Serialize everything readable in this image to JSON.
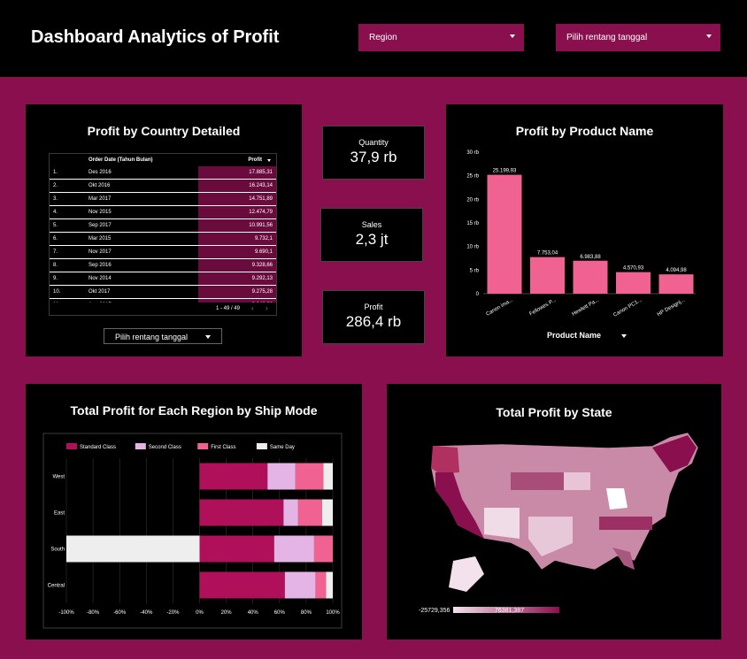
{
  "header": {
    "title": "Dashboard Analytics of Profit",
    "region_dropdown": "Region",
    "date_dropdown": "Pilih rentang tanggal"
  },
  "country_table": {
    "title": "Profit by Country Detailed",
    "col_date": "Order Date (Tahun Bulan)",
    "col_profit": "Profit",
    "rows": [
      {
        "n": "1.",
        "date": "Des 2016",
        "profit": "17.885,31"
      },
      {
        "n": "2.",
        "date": "Okt 2016",
        "profit": "16.243,14"
      },
      {
        "n": "3.",
        "date": "Mar 2017",
        "profit": "14.751,89"
      },
      {
        "n": "4.",
        "date": "Nov 2015",
        "profit": "12.474,79"
      },
      {
        "n": "5.",
        "date": "Sep 2017",
        "profit": "10.991,56"
      },
      {
        "n": "6.",
        "date": "Mar 2015",
        "profit": "9.732,1"
      },
      {
        "n": "7.",
        "date": "Nov 2017",
        "profit": "9.690,1"
      },
      {
        "n": "8.",
        "date": "Sep 2016",
        "profit": "9.328,66"
      },
      {
        "n": "9.",
        "date": "Nov 2014",
        "profit": "9.292,13"
      },
      {
        "n": "10.",
        "date": "Okt 2017",
        "profit": "9.275,28"
      },
      {
        "n": "11.",
        "date": "Agu 2017",
        "profit": "9.040,96"
      }
    ],
    "pagination": "1 - 49 / 49",
    "date_filter": "Pilih rentang tanggal"
  },
  "kpis": [
    {
      "label": "Quantity",
      "value": "37,9 rb"
    },
    {
      "label": "Sales",
      "value": "2,3 jt"
    },
    {
      "label": "Profit",
      "value": "286,4 rb"
    }
  ],
  "product_chart": {
    "title": "Profit by Product Name",
    "dimension_dropdown": "Product Name",
    "chart_data": {
      "type": "bar",
      "categories": [
        "Canon ima...",
        "Fellowes P...",
        "Hewlett Pa...",
        "Canon PC1...",
        "HP Designj..."
      ],
      "values": [
        25199.93,
        7753.04,
        6983.88,
        4570.93,
        4094.98
      ],
      "data_labels": [
        "25.199,93",
        "7.753,04",
        "6.983,88",
        "4.570,93",
        "4.094,98"
      ],
      "yticks": [
        "0",
        "5 rb",
        "10 rb",
        "15 rb",
        "20 rb",
        "25 rb",
        "30 rb"
      ],
      "ylim": [
        0,
        30000
      ],
      "bar_color": "#f06292"
    }
  },
  "region_chart": {
    "title": "Total Profit for Each Region by Ship Mode",
    "chart_data": {
      "type": "bar",
      "orientation": "horizontal-stacked-percent",
      "categories": [
        "West",
        "East",
        "South",
        "Central"
      ],
      "series": [
        {
          "name": "Standard Class",
          "color": "#b0105a",
          "values": [
            51,
            63,
            56,
            64
          ]
        },
        {
          "name": "Second Class",
          "color": "#e4b4e4",
          "values": [
            21,
            11,
            30,
            23
          ]
        },
        {
          "name": "First Class",
          "color": "#f06292",
          "values": [
            21,
            18,
            14,
            8
          ]
        },
        {
          "name": "Same Day",
          "color": "#eeeeee",
          "values": [
            7,
            8,
            -100,
            5
          ]
        }
      ],
      "xticks": [
        "-100%",
        "-80%",
        "-60%",
        "-40%",
        "-20%",
        "0%",
        "20%",
        "40%",
        "60%",
        "80%",
        "100%"
      ],
      "xlim": [
        -100,
        100
      ]
    }
  },
  "map_chart": {
    "title": "Total Profit by State",
    "legend_min": "-25729,356",
    "legend_max": "76381,387"
  }
}
